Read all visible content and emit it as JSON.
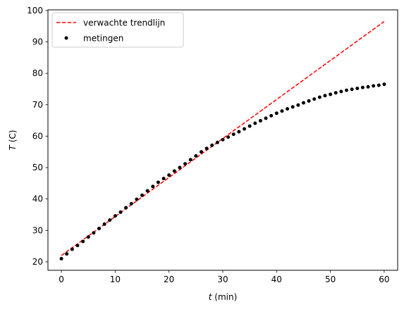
{
  "chart_data": {
    "type": "scatter",
    "xlabel_var": "t",
    "xlabel_unit": " (min)",
    "ylabel_var": "T",
    "ylabel_unit": " (C)",
    "xlim": [
      -2.5,
      62.5
    ],
    "ylim": [
      17.3,
      100.2
    ],
    "xticks": [
      0,
      10,
      20,
      30,
      40,
      50,
      60
    ],
    "yticks": [
      20,
      30,
      40,
      50,
      60,
      70,
      80,
      90,
      100
    ],
    "grid": false,
    "legend_position": "upper-left",
    "series": [
      {
        "name": "verwachte trendlijn",
        "kind": "dashed-line",
        "color": "#ff0000",
        "x": [
          0,
          60
        ],
        "y": [
          22.0,
          96.5
        ]
      },
      {
        "name": "metingen",
        "kind": "points",
        "color": "#000000",
        "x": [
          0,
          1,
          2,
          3,
          4,
          5,
          6,
          7,
          8,
          9,
          10,
          11,
          12,
          13,
          14,
          15,
          16,
          17,
          18,
          19,
          20,
          21,
          22,
          23,
          24,
          25,
          26,
          27,
          28,
          29,
          30,
          31,
          32,
          33,
          34,
          35,
          36,
          37,
          38,
          39,
          40,
          41,
          42,
          43,
          44,
          45,
          46,
          47,
          48,
          49,
          50,
          51,
          52,
          53,
          54,
          55,
          56,
          57,
          58,
          59,
          60
        ],
        "y": [
          21.0,
          22.5,
          24.0,
          25.2,
          26.5,
          27.9,
          29.2,
          30.6,
          32.0,
          33.3,
          34.6,
          35.8,
          37.2,
          38.5,
          39.9,
          41.2,
          42.6,
          44.0,
          45.3,
          46.5,
          47.6,
          48.9,
          50.0,
          51.2,
          52.5,
          53.7,
          55.0,
          56.1,
          57.1,
          58.0,
          58.9,
          59.7,
          60.6,
          61.4,
          62.3,
          63.2,
          64.1,
          64.9,
          65.7,
          66.5,
          67.3,
          68.0,
          68.7,
          69.3,
          69.9,
          70.6,
          71.2,
          71.8,
          72.4,
          72.9,
          73.3,
          73.8,
          74.2,
          74.6,
          74.9,
          75.2,
          75.5,
          75.7,
          76.0,
          76.2,
          76.5
        ]
      }
    ]
  }
}
